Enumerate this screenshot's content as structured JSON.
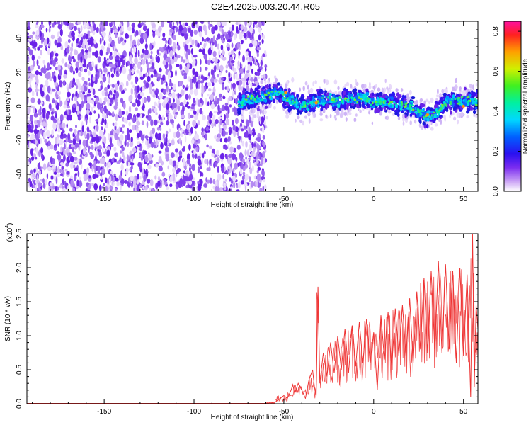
{
  "figure": {
    "title": "C2E4.2025.003.20.44.R05"
  },
  "colors": {
    "snr_line": "#ee3333",
    "axis": "#000000"
  },
  "chart_data": [
    {
      "type": "heatmap",
      "title": "C2E4.2025.003.20.44.R05",
      "xlabel": "Height of straight line (km)",
      "ylabel": "Frequency (Hz)",
      "xlim": [
        -193,
        58
      ],
      "ylim": [
        -50,
        50
      ],
      "xticks": [
        -150,
        -100,
        -50,
        0,
        50
      ],
      "yticks": [
        -40,
        -20,
        0,
        20,
        40
      ],
      "noise_region_x": [
        -193,
        -60
      ],
      "signal_region_x": [
        -75,
        58
      ],
      "ridge": {
        "x": [
          -73,
          -65,
          -60,
          -55,
          -50,
          -45,
          -40,
          -35,
          -30,
          -25,
          -20,
          -15,
          -10,
          -5,
          0,
          5,
          10,
          15,
          20,
          25,
          30,
          35,
          40,
          45,
          50,
          55,
          58
        ],
        "y": [
          4,
          5,
          6,
          8,
          6,
          3,
          0,
          2,
          3,
          4,
          3,
          4,
          4,
          5,
          2,
          3,
          2,
          1,
          0,
          -3,
          -6,
          -4,
          2,
          3,
          4,
          3,
          2
        ]
      },
      "colorbar": {
        "label": "Normalized spectral amplitude",
        "range": [
          0.0,
          0.85
        ],
        "ticks": [
          "0.0",
          "0.2",
          "0.4",
          "0.6",
          "0.8"
        ]
      }
    },
    {
      "type": "line",
      "xlabel": "Height of straight line (km)",
      "ylabel": "SNR (10 * v/v)",
      "multiplier_label": "(x10",
      "multiplier_exp": "4",
      "multiplier_close": ")",
      "xlim": [
        -193,
        58
      ],
      "ylim": [
        0,
        2.5
      ],
      "xticks": [
        -150,
        -100,
        -50,
        0,
        50
      ],
      "yticks": [
        "0.0",
        "0.5",
        "1.0",
        "1.5",
        "2.0",
        "2.5"
      ],
      "series": [
        {
          "color": "#ee3333",
          "x": [
            -193,
            -150,
            -100,
            -60,
            -55,
            -50,
            -48,
            -46,
            -45,
            -44,
            -42,
            -40,
            -38,
            -36,
            -34,
            -33,
            -32,
            -31,
            -30,
            -28,
            -26,
            -24,
            -22,
            -20,
            -18,
            -16,
            -14,
            -12,
            -10,
            -8,
            -6,
            -4,
            -2,
            0,
            2,
            4,
            6,
            8,
            10,
            12,
            14,
            16,
            18,
            20,
            22,
            24,
            26,
            28,
            30,
            32,
            34,
            36,
            38,
            40,
            42,
            44,
            46,
            48,
            50,
            52,
            54,
            55,
            56,
            57,
            58
          ],
          "y": [
            0.005,
            0.005,
            0.005,
            0.006,
            0.02,
            0.12,
            0.08,
            0.2,
            0.28,
            0.15,
            0.3,
            0.2,
            0.08,
            0.35,
            0.5,
            0.25,
            0.12,
            1.72,
            0.3,
            0.75,
            0.4,
            0.9,
            0.45,
            1.0,
            0.5,
            1.1,
            0.45,
            1.15,
            0.55,
            1.2,
            0.6,
            1.25,
            0.6,
            1.05,
            0.2,
            1.3,
            0.65,
            1.35,
            0.5,
            1.4,
            0.7,
            1.45,
            0.7,
            1.55,
            0.6,
            1.65,
            0.8,
            1.85,
            0.75,
            1.95,
            0.8,
            2.1,
            0.75,
            2.05,
            0.8,
            1.95,
            0.6,
            2.0,
            0.7,
            1.9,
            0.1,
            2.55,
            0.25,
            1.45,
            1.1
          ]
        }
      ]
    }
  ]
}
